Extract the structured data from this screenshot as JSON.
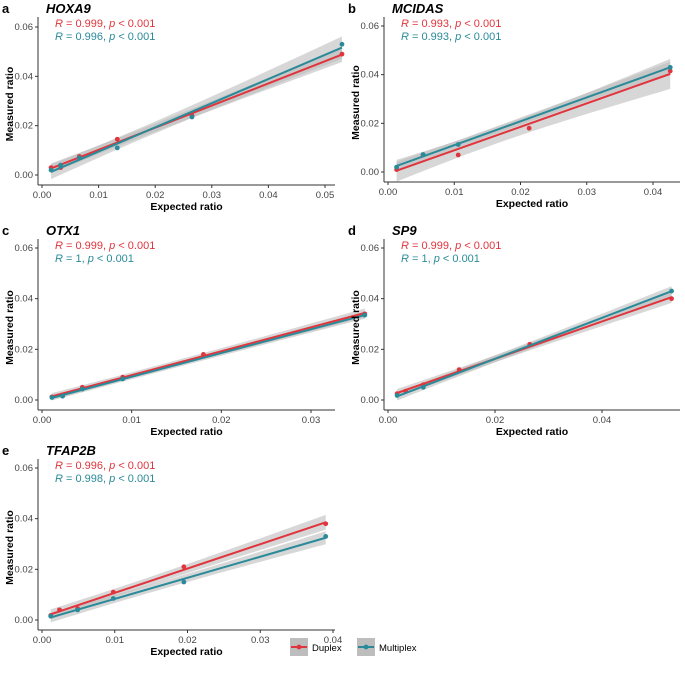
{
  "colors": {
    "Duplex": "#e0353d",
    "Multiplex": "#2a8a99",
    "band": "#bdbdbd"
  },
  "legend": {
    "items": [
      "Duplex",
      "Multiplex"
    ]
  },
  "chart_data": [
    {
      "type": "scatter",
      "panel": "a",
      "title": "HOXA9",
      "xlabel": "Expected ratio",
      "ylabel": "Measured ratio",
      "xlim": [
        0,
        0.054
      ],
      "ylim": [
        0,
        0.062
      ],
      "xticks": [
        "0.00",
        "0.01",
        "0.02",
        "0.03",
        "0.04",
        "0.05"
      ],
      "yticks": [
        "0.00",
        "0.02",
        "0.04",
        "0.06"
      ],
      "stats": [
        {
          "R": "0.999",
          "text": "= 0.999, ",
          "p": "< 0.001"
        },
        {
          "R": "0.996",
          "text": "= 0.996, ",
          "p": "< 0.001"
        }
      ],
      "series": [
        {
          "name": "Duplex",
          "points": [
            [
              0.0016,
              0.003
            ],
            [
              0.0033,
              0.003
            ],
            [
              0.0066,
              0.0075
            ],
            [
              0.0133,
              0.0145
            ],
            [
              0.0265,
              0.024
            ],
            [
              0.053,
              0.049
            ]
          ]
        },
        {
          "name": "Multiplex",
          "points": [
            [
              0.0016,
              0.002
            ],
            [
              0.0033,
              0.004
            ],
            [
              0.0066,
              0.007
            ],
            [
              0.0133,
              0.011
            ],
            [
              0.0265,
              0.0235
            ],
            [
              0.053,
              0.053
            ]
          ]
        }
      ]
    },
    {
      "type": "scatter",
      "panel": "b",
      "title": "MCIDAS",
      "xlabel": "Expected ratio",
      "ylabel": "Measured ratio",
      "xlim": [
        0,
        0.0435
      ],
      "ylim": [
        0,
        0.062
      ],
      "xticks": [
        "0.00",
        "0.01",
        "0.02",
        "0.03",
        "0.04"
      ],
      "yticks": [
        "0.00",
        "0.02",
        "0.04",
        "0.06"
      ],
      "stats": [
        {
          "R": "0.993",
          "text": "= 0.993, ",
          "p": "< 0.001"
        },
        {
          "R": "0.993",
          "text": "= 0.993, ",
          "p": "< 0.001"
        }
      ],
      "series": [
        {
          "name": "Duplex",
          "points": [
            [
              0.0013,
              0.001
            ],
            [
              0.0053,
              0.007
            ],
            [
              0.0106,
              0.007
            ],
            [
              0.0213,
              0.018
            ],
            [
              0.0426,
              0.0415
            ]
          ]
        },
        {
          "name": "Multiplex",
          "points": [
            [
              0.0013,
              0.002
            ],
            [
              0.0053,
              0.0072
            ],
            [
              0.0106,
              0.0113
            ],
            [
              0.0426,
              0.043
            ]
          ]
        }
      ]
    },
    {
      "type": "scatter",
      "panel": "c",
      "title": "OTX1",
      "xlabel": "Expected ratio",
      "ylabel": "Measured ratio",
      "xlim": [
        0,
        0.037
      ],
      "ylim": [
        0,
        0.062
      ],
      "xticks": [
        "0.00",
        "0.01",
        "0.02",
        "0.03"
      ],
      "yticks": [
        "0.00",
        "0.02",
        "0.04",
        "0.06"
      ],
      "stats": [
        {
          "R": "0.999",
          "text": "= 0.999, ",
          "p": "< 0.001"
        },
        {
          "R": "1",
          "text": "= 1, ",
          "p": "< 0.001"
        }
      ],
      "series": [
        {
          "name": "Duplex",
          "points": [
            [
              0.0011,
              0.0012
            ],
            [
              0.0023,
              0.002
            ],
            [
              0.0045,
              0.005
            ],
            [
              0.009,
              0.009
            ],
            [
              0.018,
              0.018
            ],
            [
              0.036,
              0.034
            ]
          ]
        },
        {
          "name": "Multiplex",
          "points": [
            [
              0.0011,
              0.001
            ],
            [
              0.0023,
              0.0015
            ],
            [
              0.0045,
              0.0043
            ],
            [
              0.009,
              0.0083
            ],
            [
              0.036,
              0.0335
            ]
          ]
        }
      ]
    },
    {
      "type": "scatter",
      "panel": "d",
      "title": "SP9",
      "xlabel": "Expected ratio",
      "ylabel": "Measured ratio",
      "xlim": [
        0,
        0.054
      ],
      "ylim": [
        0,
        0.062
      ],
      "xticks": [
        "0.00",
        "0.02",
        "0.04"
      ],
      "yticks": [
        "0.00",
        "0.02",
        "0.04",
        "0.06"
      ],
      "stats": [
        {
          "R": "0.999",
          "text": "= 0.999, ",
          "p": "< 0.001"
        },
        {
          "R": "1",
          "text": "= 1, ",
          "p": "< 0.001"
        }
      ],
      "series": [
        {
          "name": "Duplex",
          "points": [
            [
              0.0017,
              0.0025
            ],
            [
              0.0033,
              0.0035
            ],
            [
              0.0066,
              0.006
            ],
            [
              0.0133,
              0.012
            ],
            [
              0.0265,
              0.022
            ],
            [
              0.053,
              0.04
            ]
          ]
        },
        {
          "name": "Multiplex",
          "points": [
            [
              0.0017,
              0.0018
            ],
            [
              0.0066,
              0.005
            ],
            [
              0.053,
              0.043
            ]
          ]
        }
      ]
    },
    {
      "type": "scatter",
      "panel": "e",
      "title": "TFAP2B",
      "xlabel": "Expected ratio",
      "ylabel": "Measured ratio",
      "xlim": [
        0,
        0.04
      ],
      "ylim": [
        0,
        0.062
      ],
      "xticks": [
        "0.00",
        "0.01",
        "0.02",
        "0.03",
        "0.04"
      ],
      "yticks": [
        "0.00",
        "0.02",
        "0.04",
        "0.06"
      ],
      "stats": [
        {
          "R": "0.996",
          "text": "= 0.996, ",
          "p": "< 0.001"
        },
        {
          "R": "0.998",
          "text": "= 0.998, ",
          "p": "< 0.001"
        }
      ],
      "series": [
        {
          "name": "Duplex",
          "points": [
            [
              0.0012,
              0.0018
            ],
            [
              0.0024,
              0.004
            ],
            [
              0.0049,
              0.0045
            ],
            [
              0.0098,
              0.011
            ],
            [
              0.0195,
              0.021
            ],
            [
              0.039,
              0.038
            ]
          ]
        },
        {
          "name": "Multiplex",
          "points": [
            [
              0.0012,
              0.0015
            ],
            [
              0.0049,
              0.004
            ],
            [
              0.0098,
              0.0085
            ],
            [
              0.0195,
              0.015
            ],
            [
              0.039,
              0.033
            ]
          ]
        }
      ]
    }
  ]
}
